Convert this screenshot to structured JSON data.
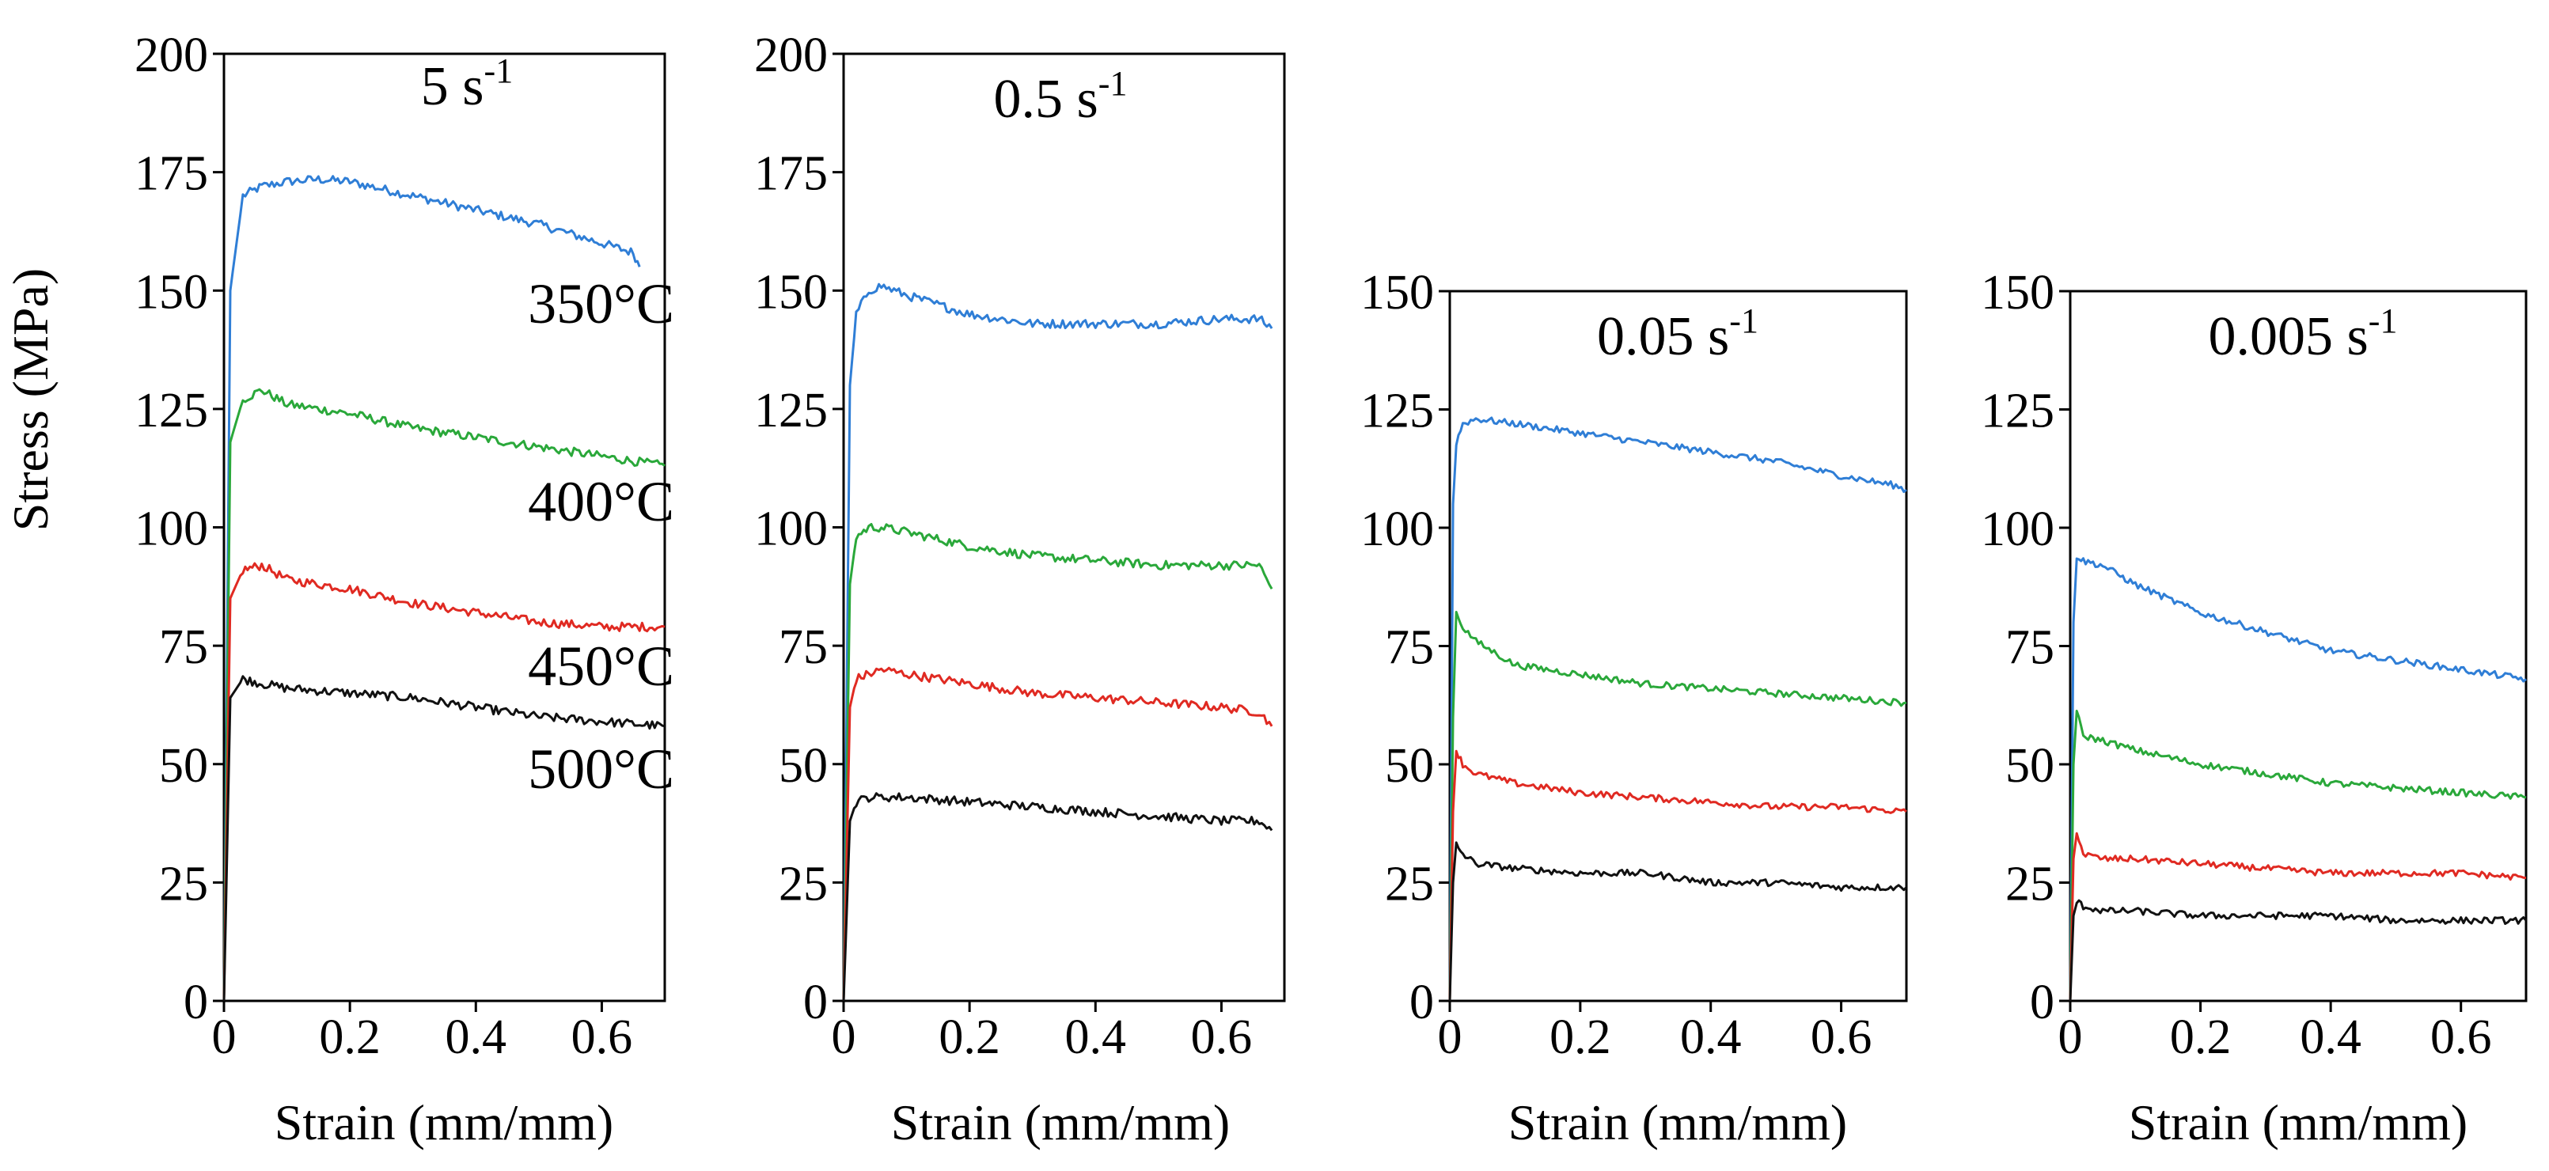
{
  "colors": {
    "350C": "#2f7ed6",
    "400C": "#2aa83a",
    "450C": "#e02a22",
    "500C": "#111111"
  },
  "ylabel": "Stress (MPa)",
  "chart_data": [
    {
      "type": "line",
      "title_main": "5 s",
      "title_sup": "-1",
      "xlabel": "Strain (mm/mm)",
      "ylabel": "Stress (MPa)",
      "xlim": [
        0,
        0.7
      ],
      "ylim": [
        0,
        200
      ],
      "xticks": [
        "0",
        "0.2",
        "0.4",
        "0.6"
      ],
      "yticks": [
        "0",
        "25",
        "50",
        "75",
        "100",
        "125",
        "150",
        "175",
        "200"
      ],
      "series_labels": [
        "350°C",
        "400°C",
        "450°C",
        "500°C"
      ],
      "series": [
        {
          "name": "350°C",
          "color_key": "350C",
          "x": [
            0,
            0.01,
            0.03,
            0.06,
            0.1,
            0.15,
            0.2,
            0.3,
            0.4,
            0.5,
            0.6,
            0.65,
            0.66
          ],
          "y": [
            0,
            150,
            170,
            172,
            173,
            173.5,
            173,
            170,
            167,
            164,
            160,
            158,
            155
          ]
        },
        {
          "name": "400°C",
          "color_key": "400C",
          "x": [
            0,
            0.01,
            0.03,
            0.06,
            0.1,
            0.2,
            0.3,
            0.4,
            0.5,
            0.6,
            0.7
          ],
          "y": [
            0,
            118,
            127,
            129,
            126,
            124,
            121,
            119,
            117,
            115,
            113
          ]
        },
        {
          "name": "450°C",
          "color_key": "450C",
          "x": [
            0,
            0.01,
            0.03,
            0.06,
            0.1,
            0.2,
            0.3,
            0.4,
            0.5,
            0.6,
            0.7
          ],
          "y": [
            0,
            85,
            91,
            92,
            89,
            87,
            84,
            82,
            80,
            79,
            79
          ]
        },
        {
          "name": "500°C",
          "color_key": "500C",
          "x": [
            0,
            0.01,
            0.03,
            0.06,
            0.1,
            0.2,
            0.3,
            0.4,
            0.5,
            0.6,
            0.7
          ],
          "y": [
            0,
            64,
            68,
            67,
            66,
            65,
            64,
            62,
            60,
            59,
            58
          ]
        }
      ]
    },
    {
      "type": "line",
      "title_main": "0.5 s",
      "title_sup": "-1",
      "xlabel": "Strain (mm/mm)",
      "xlim": [
        0,
        0.7
      ],
      "ylim": [
        0,
        200
      ],
      "xticks": [
        "0",
        "0.2",
        "0.4",
        "0.6"
      ],
      "yticks": [
        "0",
        "25",
        "50",
        "75",
        "100",
        "125",
        "150",
        "175",
        "200"
      ],
      "series": [
        {
          "name": "350°C",
          "color_key": "350C",
          "x": [
            0,
            0.01,
            0.02,
            0.04,
            0.06,
            0.1,
            0.2,
            0.3,
            0.4,
            0.5,
            0.6,
            0.66,
            0.68
          ],
          "y": [
            0,
            130,
            145,
            150,
            151,
            149,
            145,
            143,
            143,
            143,
            144,
            144,
            142
          ]
        },
        {
          "name": "400°C",
          "color_key": "400C",
          "x": [
            0,
            0.01,
            0.02,
            0.04,
            0.06,
            0.1,
            0.2,
            0.3,
            0.4,
            0.5,
            0.6,
            0.66,
            0.68
          ],
          "y": [
            0,
            88,
            98,
            100,
            100,
            99,
            96,
            94,
            93,
            92,
            92,
            92,
            87
          ]
        },
        {
          "name": "450°C",
          "color_key": "450C",
          "x": [
            0,
            0.01,
            0.02,
            0.04,
            0.06,
            0.1,
            0.2,
            0.3,
            0.4,
            0.5,
            0.6,
            0.66,
            0.68
          ],
          "y": [
            0,
            62,
            68,
            69,
            70,
            69,
            67,
            65,
            64,
            63,
            62,
            61,
            58
          ]
        },
        {
          "name": "500°C",
          "color_key": "500C",
          "x": [
            0,
            0.01,
            0.02,
            0.04,
            0.06,
            0.1,
            0.2,
            0.3,
            0.4,
            0.5,
            0.6,
            0.66,
            0.68
          ],
          "y": [
            0,
            38,
            42,
            43,
            43,
            43,
            42,
            41,
            40,
            39,
            38,
            38,
            36
          ]
        }
      ]
    },
    {
      "type": "line",
      "title_main": "0.05 s",
      "title_sup": "-1",
      "xlabel": "Strain (mm/mm)",
      "xlim": [
        0,
        0.7
      ],
      "ylim": [
        0,
        150
      ],
      "xticks": [
        "0",
        "0.2",
        "0.4",
        "0.6"
      ],
      "yticks": [
        "0",
        "25",
        "50",
        "75",
        "100",
        "125",
        "150"
      ],
      "series": [
        {
          "name": "350°C",
          "color_key": "350C",
          "x": [
            0,
            0.005,
            0.01,
            0.02,
            0.04,
            0.1,
            0.2,
            0.3,
            0.4,
            0.5,
            0.6,
            0.68,
            0.7
          ],
          "y": [
            0,
            105,
            118,
            122,
            123,
            122,
            120,
            118,
            116,
            114,
            111,
            109,
            108
          ]
        },
        {
          "name": "400°C",
          "color_key": "400C",
          "x": [
            0,
            0.005,
            0.01,
            0.02,
            0.04,
            0.1,
            0.2,
            0.3,
            0.4,
            0.5,
            0.6,
            0.7
          ],
          "y": [
            0,
            60,
            82,
            79,
            76,
            71,
            69,
            67,
            66,
            65,
            64,
            63
          ]
        },
        {
          "name": "450°C",
          "color_key": "450C",
          "x": [
            0,
            0.005,
            0.01,
            0.02,
            0.04,
            0.1,
            0.2,
            0.3,
            0.4,
            0.5,
            0.6,
            0.7
          ],
          "y": [
            0,
            40,
            53,
            50,
            48,
            46,
            44,
            43,
            42,
            41,
            41,
            40
          ]
        },
        {
          "name": "500°C",
          "color_key": "500C",
          "x": [
            0,
            0.005,
            0.01,
            0.02,
            0.04,
            0.1,
            0.2,
            0.3,
            0.4,
            0.5,
            0.6,
            0.7
          ],
          "y": [
            0,
            25,
            33,
            31,
            29,
            28,
            27,
            27,
            25,
            25,
            24,
            24
          ]
        }
      ]
    },
    {
      "type": "line",
      "title_main": "0.005 s",
      "title_sup": "-1",
      "xlabel": "Strain (mm/mm)",
      "xlim": [
        0,
        0.7
      ],
      "ylim": [
        0,
        150
      ],
      "xticks": [
        "0",
        "0.2",
        "0.4",
        "0.6"
      ],
      "yticks": [
        "0",
        "25",
        "50",
        "75",
        "100",
        "125",
        "150"
      ],
      "series": [
        {
          "name": "350°C",
          "color_key": "350C",
          "x": [
            0,
            0.005,
            0.01,
            0.02,
            0.05,
            0.1,
            0.2,
            0.3,
            0.4,
            0.5,
            0.6,
            0.7
          ],
          "y": [
            0,
            80,
            94,
            93,
            92,
            88,
            82,
            78,
            74,
            72,
            70,
            68
          ]
        },
        {
          "name": "400°C",
          "color_key": "400C",
          "x": [
            0,
            0.005,
            0.01,
            0.02,
            0.05,
            0.1,
            0.2,
            0.3,
            0.4,
            0.5,
            0.6,
            0.7
          ],
          "y": [
            0,
            50,
            61,
            56,
            55,
            53,
            50,
            48,
            46,
            45,
            44,
            43
          ]
        },
        {
          "name": "450°C",
          "color_key": "450C",
          "x": [
            0,
            0.005,
            0.01,
            0.02,
            0.05,
            0.1,
            0.2,
            0.3,
            0.4,
            0.5,
            0.6,
            0.7
          ],
          "y": [
            0,
            30,
            36,
            31,
            30,
            30,
            29,
            28,
            27,
            27,
            27,
            26
          ]
        },
        {
          "name": "500°C",
          "color_key": "500C",
          "x": [
            0,
            0.005,
            0.01,
            0.02,
            0.05,
            0.1,
            0.2,
            0.3,
            0.4,
            0.5,
            0.6,
            0.7
          ],
          "y": [
            0,
            18,
            21,
            20,
            19,
            19,
            18,
            18,
            18,
            17,
            17,
            17
          ]
        }
      ]
    }
  ]
}
